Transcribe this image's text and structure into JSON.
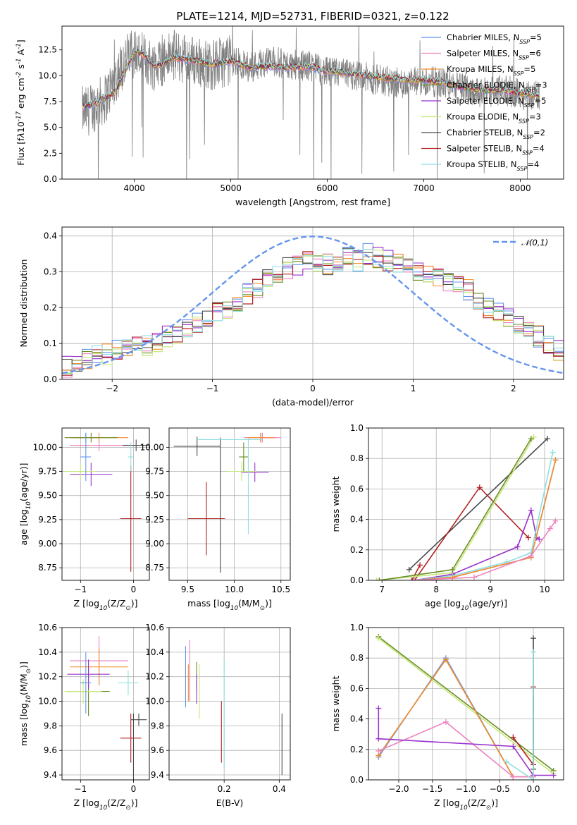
{
  "chart_data": [
    {
      "type": "line",
      "title": "PLATE=1214, MJD=52731, FIBERID=0321, z=0.122",
      "xlabel": "wavelength [Angstrom, rest frame]",
      "ylabel": "Flux [f$\\lambda$10$^{-17}$ erg cm$^{-2}$ s$^{-1}$ A$^{-1}$]",
      "xlim": [
        3250,
        8450
      ],
      "ylim": [
        0,
        14.8
      ],
      "xticks": [
        4000,
        5000,
        6000,
        7000,
        8000
      ],
      "yticks": [
        0.0,
        2.5,
        5.0,
        7.5,
        10.0,
        12.5
      ],
      "data_spectrum": {
        "x": [
          3500,
          3700,
          3900,
          4000,
          4200,
          4400,
          4600,
          4800,
          5000,
          5200,
          5400,
          5600,
          5800,
          6000,
          6200,
          6400,
          6600,
          6800,
          7000,
          7200,
          7400,
          7600,
          7800,
          8000,
          8200
        ],
        "y": [
          6.5,
          7.8,
          11.5,
          12.3,
          11.0,
          12.0,
          11.5,
          11.0,
          11.5,
          10.8,
          11.5,
          11.0,
          11.0,
          10.3,
          10.2,
          9.8,
          9.5,
          9.2,
          9.5,
          9.3,
          8.8,
          8.4,
          8.6,
          8.3,
          8.0
        ]
      },
      "model_curve": {
        "x": [
          3460,
          3500,
          3600,
          3700,
          3800,
          3900,
          4000,
          4100,
          4200,
          4300,
          4400,
          4500,
          4600,
          4800,
          5000,
          5200,
          5400,
          5600,
          5800,
          6000,
          6200,
          6400,
          6600,
          6800,
          7000,
          7200,
          7400,
          7600,
          7800,
          8000,
          8200
        ],
        "y": [
          7.0,
          7.1,
          7.3,
          7.9,
          8.4,
          10.4,
          12.4,
          12.0,
          11.0,
          11.0,
          11.8,
          11.6,
          11.5,
          11.1,
          11.4,
          10.8,
          10.9,
          10.8,
          10.9,
          10.4,
          10.3,
          10.0,
          9.8,
          9.6,
          9.6,
          9.4,
          8.9,
          8.6,
          8.6,
          8.3,
          8.1
        ]
      },
      "legend_position": "upper right",
      "series": [
        {
          "name": "Chabrier MILES, N$_{SSP}$=5",
          "color": "#6495ed"
        },
        {
          "name": "Salpeter MILES, N$_{SSP}$=6",
          "color": "#ee82c0"
        },
        {
          "name": "Kroupa MILES, N$_{SSP}$=5",
          "color": "#f28c28"
        },
        {
          "name": "Chabrier ELODIE, N$_{SSP}$=3",
          "color": "#6b8e23"
        },
        {
          "name": "Salpeter ELODIE, N$_{SSP}$=5",
          "color": "#9932cc"
        },
        {
          "name": "Kroupa ELODIE, N$_{SSP}$=3",
          "color": "#c5e87a"
        },
        {
          "name": "Chabrier STELIB, N$_{SSP}$=2",
          "color": "#4a4a4a"
        },
        {
          "name": "Salpeter STELIB, N$_{SSP}$=4",
          "color": "#b22222"
        },
        {
          "name": "Kroupa STELIB, N$_{SSP}$=4",
          "color": "#8fdfe0"
        }
      ]
    },
    {
      "type": "line",
      "xlabel": "(data-model)/error",
      "ylabel": "Normed distribution",
      "xlim": [
        -2.5,
        2.5
      ],
      "ylim": [
        0,
        0.425
      ],
      "xticks": [
        -2,
        -1,
        0,
        1,
        2
      ],
      "yticks": [
        0.0,
        0.1,
        0.2,
        0.3,
        0.4
      ],
      "grid": true,
      "legend": "$\\mathcal{N}(0,1)$",
      "bin_width": 0.1,
      "bin_start": -2.5,
      "hist_profile": [
        0.035,
        0.045,
        0.055,
        0.065,
        0.07,
        0.08,
        0.085,
        0.09,
        0.095,
        0.1,
        0.12,
        0.13,
        0.14,
        0.16,
        0.17,
        0.19,
        0.2,
        0.22,
        0.24,
        0.25,
        0.28,
        0.3,
        0.31,
        0.32,
        0.33,
        0.33,
        0.32,
        0.33,
        0.34,
        0.33,
        0.35,
        0.34,
        0.33,
        0.32,
        0.31,
        0.3,
        0.3,
        0.28,
        0.27,
        0.26,
        0.25,
        0.22,
        0.2,
        0.19,
        0.17,
        0.15,
        0.13,
        0.12,
        0.1,
        0.08
      ],
      "series_colors": [
        "#6495ed",
        "#ee82c0",
        "#f28c28",
        "#6b8e23",
        "#9932cc",
        "#c5e87a",
        "#4a4a4a",
        "#b22222",
        "#8fdfe0"
      ]
    },
    {
      "type": "scatter",
      "xlabel": "Z [log$_{10}$(Z/Z$_\\odot$)]",
      "ylabel": "age  [log$_{10}$(age/yr)]",
      "xlim": [
        -1.35,
        0.3
      ],
      "ylim": [
        8.62,
        10.2
      ],
      "xticks": [
        -1,
        0
      ],
      "yticks": [
        8.75,
        9.0,
        9.25,
        9.5,
        9.75,
        10.0
      ],
      "grid": true,
      "points": [
        {
          "x": -0.9,
          "y": 10.1,
          "xerr": 0.25,
          "yerr": 0.05,
          "c": 0
        },
        {
          "x": -0.65,
          "y": 10.02,
          "xerr": 0.55,
          "yerr": 0.06,
          "c": 1
        },
        {
          "x": -0.65,
          "y": 10.1,
          "xerr": 0.55,
          "yerr": 0.05,
          "c": 2
        },
        {
          "x": -0.8,
          "y": 10.1,
          "xerr": 0.5,
          "yerr": 0.05,
          "c": 3
        },
        {
          "x": -0.8,
          "y": 9.72,
          "xerr": 0.4,
          "yerr": 0.12,
          "c": 4
        },
        {
          "x": -1.0,
          "y": 9.75,
          "xerr": 0.3,
          "yerr": 0.08,
          "c": 5
        },
        {
          "x": -0.9,
          "y": 9.9,
          "xerr": 0.1,
          "yerr": 0.25,
          "c": 0
        },
        {
          "x": 0.05,
          "y": 10.02,
          "xerr": 0.25,
          "yerr": 0.06,
          "c": 6
        },
        {
          "x": -0.05,
          "y": 9.26,
          "xerr": 0.2,
          "yerr": 0.55,
          "c": 7
        },
        {
          "x": -0.05,
          "y": 9.9,
          "xerr": 0.05,
          "yerr": 0.15,
          "c": 8
        }
      ]
    },
    {
      "type": "scatter",
      "xlabel": "mass [log$_{10}$(M/M$_\\odot$)]",
      "ylabel": "",
      "xlim": [
        9.3,
        10.6
      ],
      "ylim": [
        8.62,
        10.2
      ],
      "xticks": [
        9.5,
        10.0,
        10.5
      ],
      "yticks": [
        8.75,
        9.0,
        9.25,
        9.5,
        9.75,
        10.0
      ],
      "grid": true,
      "points": [
        {
          "x": 10.3,
          "y": 10.1,
          "xerr": 0.15,
          "yerr": 0.05,
          "c": 0
        },
        {
          "x": 10.3,
          "y": 10.1,
          "xerr": 0.2,
          "yerr": 0.05,
          "c": 1
        },
        {
          "x": 10.28,
          "y": 10.1,
          "xerr": 0.15,
          "yerr": 0.05,
          "c": 2
        },
        {
          "x": 10.1,
          "y": 9.9,
          "xerr": 0.05,
          "yerr": 0.15,
          "c": 3
        },
        {
          "x": 10.22,
          "y": 9.74,
          "xerr": 0.15,
          "yerr": 0.1,
          "c": 4
        },
        {
          "x": 10.08,
          "y": 9.75,
          "xerr": 0.15,
          "yerr": 0.1,
          "c": 5
        },
        {
          "x": 9.6,
          "y": 10.01,
          "xerr": 0.25,
          "yerr": 0.1,
          "c": 6
        },
        {
          "x": 9.7,
          "y": 9.26,
          "xerr": 0.2,
          "yerr": 0.38,
          "c": 7
        },
        {
          "x": 10.15,
          "y": 9.6,
          "xerr": 0.0,
          "yerr": 0.5,
          "c": 8
        },
        {
          "x": 9.85,
          "y": 9.4,
          "xerr": 0.0,
          "yerr": 0.7,
          "c": 6
        },
        {
          "x": 9.95,
          "y": 10.08,
          "xerr": 0.35,
          "yerr": 0.0,
          "c": 8
        }
      ]
    },
    {
      "type": "line",
      "xlabel": "age  [log$_{10}$(age/yr)]",
      "ylabel": "mass weight",
      "xlim": [
        6.75,
        10.35
      ],
      "ylim": [
        0,
        1.0
      ],
      "xticks": [
        7,
        8,
        9,
        10
      ],
      "yticks": [
        0.0,
        0.2,
        0.4,
        0.6,
        0.8,
        1.0
      ],
      "grid": true,
      "series": [
        {
          "c": 6,
          "x": [
            7.5,
            10.05
          ],
          "y": [
            0.07,
            0.93
          ]
        },
        {
          "c": 7,
          "x": [
            7.6,
            8.8,
            9.7
          ],
          "y": [
            0.0,
            0.61,
            0.28
          ]
        },
        {
          "c": 7,
          "x": [
            7.7,
            7.55
          ],
          "y": [
            0.1,
            0.0
          ]
        },
        {
          "c": 5,
          "x": [
            6.9,
            8.3,
            9.8
          ],
          "y": [
            0.0,
            0.05,
            0.94
          ]
        },
        {
          "c": 3,
          "x": [
            6.95,
            8.3,
            9.75
          ],
          "y": [
            0.0,
            0.07,
            0.93
          ]
        },
        {
          "c": 4,
          "x": [
            7.6,
            8.3,
            9.5,
            9.75,
            9.85,
            9.9
          ],
          "y": [
            0.0,
            0.04,
            0.22,
            0.46,
            0.28,
            0.27
          ]
        },
        {
          "c": 8,
          "x": [
            7.6,
            8.3,
            9.3,
            9.75,
            10.15
          ],
          "y": [
            0.0,
            0.03,
            0.12,
            0.18,
            0.84
          ]
        },
        {
          "c": 0,
          "x": [
            7.6,
            8.3,
            9.75,
            10.2
          ],
          "y": [
            0.0,
            0.02,
            0.15,
            0.79
          ]
        },
        {
          "c": 2,
          "x": [
            7.6,
            8.3,
            9.75,
            10.2
          ],
          "y": [
            0.0,
            0.02,
            0.15,
            0.79
          ]
        },
        {
          "c": 1,
          "x": [
            7.6,
            8.7,
            9.75,
            10.1,
            10.2
          ],
          "y": [
            0.0,
            0.02,
            0.16,
            0.34,
            0.39
          ]
        }
      ]
    },
    {
      "type": "scatter",
      "xlabel": "Z [log$_{10}$(Z/Z$_\\odot$)]",
      "ylabel": "mass [log$_{10}$(M/M$_\\odot$)]",
      "xlim": [
        -1.35,
        0.3
      ],
      "ylim": [
        9.36,
        10.6
      ],
      "xticks": [
        -1,
        0
      ],
      "yticks": [
        9.4,
        9.6,
        9.8,
        10.0,
        10.2,
        10.4,
        10.6
      ],
      "grid": true,
      "points": [
        {
          "x": -0.65,
          "y": 10.33,
          "xerr": 0.55,
          "yerr": 0.0,
          "c": 0
        },
        {
          "x": -0.65,
          "y": 10.33,
          "xerr": 0.55,
          "yerr": 0.2,
          "c": 1
        },
        {
          "x": -0.65,
          "y": 10.28,
          "xerr": 0.55,
          "yerr": 0.15,
          "c": 2
        },
        {
          "x": -0.85,
          "y": 10.08,
          "xerr": 0.4,
          "yerr": 0.2,
          "c": 3
        },
        {
          "x": -0.85,
          "y": 10.22,
          "xerr": 0.4,
          "yerr": 0.12,
          "c": 4
        },
        {
          "x": -0.95,
          "y": 10.08,
          "xerr": 0.35,
          "yerr": 0.1,
          "c": 5
        },
        {
          "x": -0.9,
          "y": 10.15,
          "xerr": 0.1,
          "yerr": 0.25,
          "c": 0
        },
        {
          "x": 0.1,
          "y": 9.85,
          "xerr": 0.15,
          "yerr": 0.05,
          "c": 6
        },
        {
          "x": -0.05,
          "y": 9.7,
          "xerr": 0.2,
          "yerr": 0.2,
          "c": 7
        },
        {
          "x": -0.1,
          "y": 10.15,
          "xerr": 0.2,
          "yerr": 0.1,
          "c": 8
        },
        {
          "x": 0.0,
          "y": 9.6,
          "xerr": 0.0,
          "yerr": 0.3,
          "c": 6
        }
      ]
    },
    {
      "type": "scatter",
      "xlabel": "E(B-V)",
      "ylabel": "",
      "xlim": [
        0.0,
        0.44
      ],
      "ylim": [
        9.36,
        10.6
      ],
      "xticks": [
        0.2,
        0.4
      ],
      "yticks": [
        9.4,
        9.6,
        9.8,
        10.0,
        10.2,
        10.4,
        10.6
      ],
      "grid": true,
      "points": [
        {
          "x": 0.06,
          "y": 10.2,
          "xerr": 0.0,
          "yerr": 0.25,
          "c": 0
        },
        {
          "x": 0.075,
          "y": 10.25,
          "xerr": 0.0,
          "yerr": 0.25,
          "c": 1
        },
        {
          "x": 0.07,
          "y": 10.15,
          "xerr": 0.0,
          "yerr": 0.15,
          "c": 2
        },
        {
          "x": 0.1,
          "y": 10.2,
          "xerr": 0.0,
          "yerr": 0.12,
          "c": 3
        },
        {
          "x": 0.1,
          "y": 10.1,
          "xerr": 0.0,
          "yerr": 0.12,
          "c": 4
        },
        {
          "x": 0.11,
          "y": 10.08,
          "xerr": 0.0,
          "yerr": 0.22,
          "c": 5
        },
        {
          "x": 0.41,
          "y": 9.65,
          "xerr": 0.0,
          "yerr": 0.25,
          "c": 6
        },
        {
          "x": 0.19,
          "y": 9.75,
          "xerr": 0.0,
          "yerr": 0.25,
          "c": 7
        },
        {
          "x": 0.2,
          "y": 9.9,
          "xerr": 0.0,
          "yerr": 0.45,
          "c": 8
        }
      ]
    },
    {
      "type": "line",
      "xlabel": "Z [log$_{10}$(Z/Z$_\\odot$)]",
      "ylabel": "mass weight",
      "xlim": [
        -2.45,
        0.45
      ],
      "ylim": [
        0,
        1.0
      ],
      "xticks": [
        -2.0,
        -1.5,
        -1.0,
        -0.5,
        0.0
      ],
      "yticks": [
        0.0,
        0.2,
        0.4,
        0.6,
        0.8,
        1.0
      ],
      "grid": true,
      "series": [
        {
          "c": 3,
          "x": [
            -2.3,
            0.3
          ],
          "y": [
            0.94,
            0.06
          ]
        },
        {
          "c": 5,
          "x": [
            -2.3,
            0.3
          ],
          "y": [
            0.93,
            0.04
          ]
        },
        {
          "c": 0,
          "x": [
            -2.3,
            -1.3,
            -0.3,
            0.0
          ],
          "y": [
            0.15,
            0.8,
            0.02,
            0.02
          ]
        },
        {
          "c": 2,
          "x": [
            -2.3,
            -1.3,
            -0.3,
            0.0
          ],
          "y": [
            0.16,
            0.79,
            0.02,
            0.02
          ]
        },
        {
          "c": 1,
          "x": [
            -2.3,
            -1.3,
            -0.3,
            0.0
          ],
          "y": [
            0.19,
            0.38,
            0.02,
            0.02
          ]
        },
        {
          "c": 4,
          "x": [
            -2.3,
            -2.3,
            -0.3,
            0.0,
            0.3
          ],
          "y": [
            0.47,
            0.27,
            0.22,
            0.03,
            0.03
          ]
        },
        {
          "c": 7,
          "x": [
            -0.3,
            0.0,
            0.0
          ],
          "y": [
            0.28,
            0.1,
            0.61
          ]
        },
        {
          "c": 6,
          "x": [
            0.0,
            0.0
          ],
          "y": [
            0.07,
            0.93
          ]
        },
        {
          "c": 8,
          "x": [
            -0.4,
            0.0,
            0.0
          ],
          "y": [
            0.12,
            0.0,
            0.84
          ]
        }
      ]
    }
  ]
}
